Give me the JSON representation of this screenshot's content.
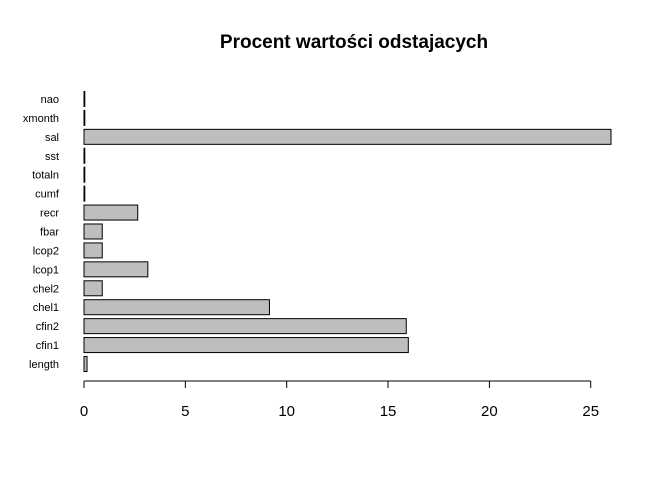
{
  "chart_data": {
    "type": "bar",
    "orientation": "horizontal",
    "title": "Procent wartości odstajacych",
    "xlabel": "",
    "ylabel": "",
    "categories": [
      "length",
      "cfin1",
      "cfin2",
      "chel1",
      "chel2",
      "lcop1",
      "lcop2",
      "fbar",
      "recr",
      "cumf",
      "totaln",
      "sst",
      "sal",
      "xmonth",
      "nao"
    ],
    "values": [
      0.15,
      16.0,
      15.9,
      9.15,
      0.9,
      3.15,
      0.9,
      0.9,
      2.65,
      0,
      0,
      0,
      26.0,
      0,
      0
    ],
    "xlim": [
      0,
      26
    ],
    "xticks": [
      "0",
      "5",
      "10",
      "15",
      "20",
      "25"
    ],
    "xtick_values": [
      0,
      5,
      10,
      15,
      20,
      25
    ],
    "grid": false,
    "bar_fill": "#bebebe",
    "bar_stroke": "#000000"
  }
}
